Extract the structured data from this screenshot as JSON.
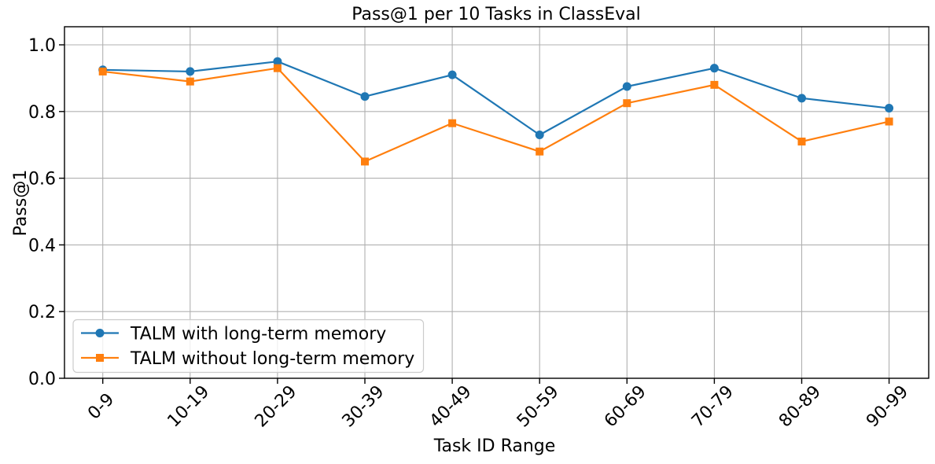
{
  "chart_data": {
    "type": "line",
    "title": "Pass@1 per 10 Tasks in ClassEval",
    "xlabel": "Task ID Range",
    "ylabel": "Pass@1",
    "categories": [
      "0-9",
      "10-19",
      "20-29",
      "30-39",
      "40-49",
      "50-59",
      "60-69",
      "70-79",
      "80-89",
      "90-99"
    ],
    "series": [
      {
        "name": "TALM with long-term memory",
        "color": "#1f77b4",
        "marker": "circle",
        "values": [
          0.925,
          0.92,
          0.95,
          0.845,
          0.91,
          0.73,
          0.875,
          0.93,
          0.84,
          0.81
        ]
      },
      {
        "name": "TALM without long-term memory",
        "color": "#ff7f0e",
        "marker": "square",
        "values": [
          0.92,
          0.89,
          0.93,
          0.65,
          0.765,
          0.68,
          0.825,
          0.88,
          0.71,
          0.77
        ]
      }
    ],
    "ytick_labels": [
      "0.0",
      "0.2",
      "0.4",
      "0.6",
      "0.8",
      "1.0"
    ],
    "ylim": [
      0.0,
      1.05
    ],
    "grid": true,
    "grid_color": "#b0b0b0",
    "axis_color": "#000000",
    "legend_position": "lower left"
  }
}
